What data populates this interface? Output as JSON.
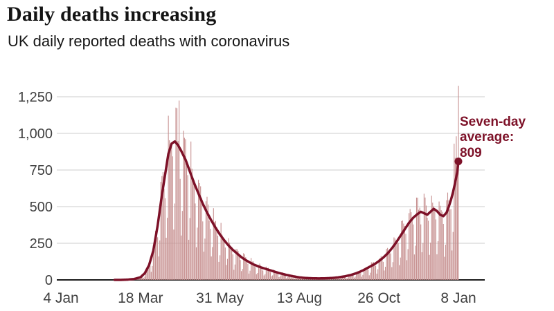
{
  "chart_data": {
    "type": "bar+line",
    "title": "Daily deaths increasing",
    "subtitle": "UK daily reported deaths with coronavirus",
    "x_tick_labels": [
      "4 Jan",
      "18 Mar",
      "31 May",
      "13 Aug",
      "26 Oct",
      "8 Jan"
    ],
    "x_tick_days": [
      0,
      74,
      148,
      222,
      296,
      370
    ],
    "y_ticks": [
      0,
      250,
      500,
      750,
      1000,
      1250
    ],
    "y_tick_labels": [
      "0",
      "250",
      "500",
      "750",
      "1,000",
      "1,250"
    ],
    "ylim": [
      0,
      1350
    ],
    "grid": true,
    "legend_position": "none",
    "colors": {
      "bar": "#c79090",
      "line": "#7d1128",
      "grid": "#cccccc",
      "axis": "#1a1a1a",
      "tick_text": "#404040",
      "annotation_text": "#7d1128"
    },
    "series": [
      {
        "name": "Daily reported deaths",
        "type": "bar"
      },
      {
        "name": "Seven-day average",
        "type": "line"
      }
    ],
    "seven_day_average_anchors": [
      [
        0,
        0
      ],
      [
        55,
        0
      ],
      [
        62,
        2
      ],
      [
        68,
        6
      ],
      [
        74,
        18
      ],
      [
        78,
        45
      ],
      [
        82,
        100
      ],
      [
        86,
        200
      ],
      [
        90,
        370
      ],
      [
        94,
        580
      ],
      [
        97,
        720
      ],
      [
        100,
        860
      ],
      [
        103,
        930
      ],
      [
        106,
        945
      ],
      [
        109,
        920
      ],
      [
        112,
        880
      ],
      [
        116,
        820
      ],
      [
        120,
        740
      ],
      [
        124,
        660
      ],
      [
        128,
        590
      ],
      [
        132,
        520
      ],
      [
        136,
        460
      ],
      [
        140,
        405
      ],
      [
        144,
        355
      ],
      [
        148,
        310
      ],
      [
        152,
        270
      ],
      [
        156,
        235
      ],
      [
        160,
        205
      ],
      [
        164,
        180
      ],
      [
        168,
        155
      ],
      [
        172,
        135
      ],
      [
        176,
        118
      ],
      [
        180,
        103
      ],
      [
        186,
        86
      ],
      [
        192,
        72
      ],
      [
        198,
        58
      ],
      [
        204,
        45
      ],
      [
        210,
        34
      ],
      [
        216,
        25
      ],
      [
        222,
        17
      ],
      [
        228,
        13
      ],
      [
        234,
        11
      ],
      [
        240,
        10
      ],
      [
        246,
        11
      ],
      [
        252,
        13
      ],
      [
        258,
        17
      ],
      [
        264,
        24
      ],
      [
        270,
        34
      ],
      [
        276,
        48
      ],
      [
        282,
        68
      ],
      [
        288,
        92
      ],
      [
        292,
        108
      ],
      [
        296,
        128
      ],
      [
        300,
        152
      ],
      [
        304,
        180
      ],
      [
        308,
        215
      ],
      [
        312,
        255
      ],
      [
        316,
        300
      ],
      [
        320,
        345
      ],
      [
        324,
        390
      ],
      [
        328,
        425
      ],
      [
        332,
        450
      ],
      [
        335,
        465
      ],
      [
        338,
        455
      ],
      [
        341,
        445
      ],
      [
        344,
        465
      ],
      [
        347,
        485
      ],
      [
        350,
        470
      ],
      [
        353,
        445
      ],
      [
        356,
        435
      ],
      [
        359,
        460
      ],
      [
        361,
        500
      ],
      [
        363,
        545
      ],
      [
        365,
        600
      ],
      [
        367,
        665
      ],
      [
        369,
        740
      ],
      [
        370,
        809
      ]
    ],
    "weekly_bar_factors": [
      0.38,
      0.55,
      1.22,
      1.18,
      1.1,
      1.0,
      0.85
    ],
    "bar_overrides": {
      "110": 1224,
      "366": 930,
      "368": 980,
      "370": 1325
    },
    "annotation": {
      "label": "Seven-day average:",
      "value": "809",
      "at_day": 370
    },
    "end_point": {
      "day": 370,
      "value": 809
    }
  }
}
